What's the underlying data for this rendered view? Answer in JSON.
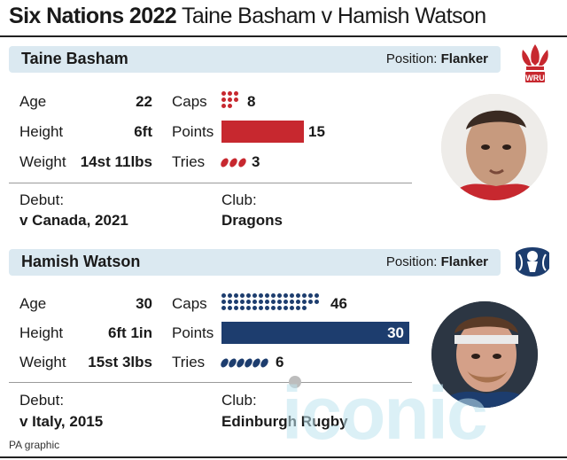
{
  "header": {
    "title_bold": "Six Nations 2022",
    "title_rest": "Taine Basham v Hamish Watson"
  },
  "players": [
    {
      "name": "Taine Basham",
      "position_label": "Position:",
      "position": "Flanker",
      "age_label": "Age",
      "age": "22",
      "height_label": "Height",
      "height": "6ft",
      "weight_label": "Weight",
      "weight": "14st 11lbs",
      "caps_label": "Caps",
      "caps": "8",
      "points_label": "Points",
      "points": "15",
      "tries_label": "Tries",
      "tries": "3",
      "debut_label": "Debut:",
      "debut": "v Canada, 2021",
      "club_label": "Club:",
      "club": "Dragons",
      "team_color": "#c7282f",
      "crest_icon": "wales-feathers-crest-icon",
      "crest_text": "WRU"
    },
    {
      "name": "Hamish Watson",
      "position_label": "Position:",
      "position": "Flanker",
      "age_label": "Age",
      "age": "30",
      "height_label": "Height",
      "height": "6ft 1in",
      "weight_label": "Weight",
      "weight": "15st 3lbs",
      "caps_label": "Caps",
      "caps": "46",
      "points_label": "Points",
      "points": "30",
      "tries_label": "Tries",
      "tries": "6",
      "debut_label": "Debut:",
      "debut": "v Italy, 2015",
      "club_label": "Club:",
      "club": "Edinburgh Rugby",
      "team_color": "#1d3d6e",
      "crest_icon": "scotland-thistle-crest-icon"
    }
  ],
  "watermark": "iconic",
  "credit": "PA graphic"
}
